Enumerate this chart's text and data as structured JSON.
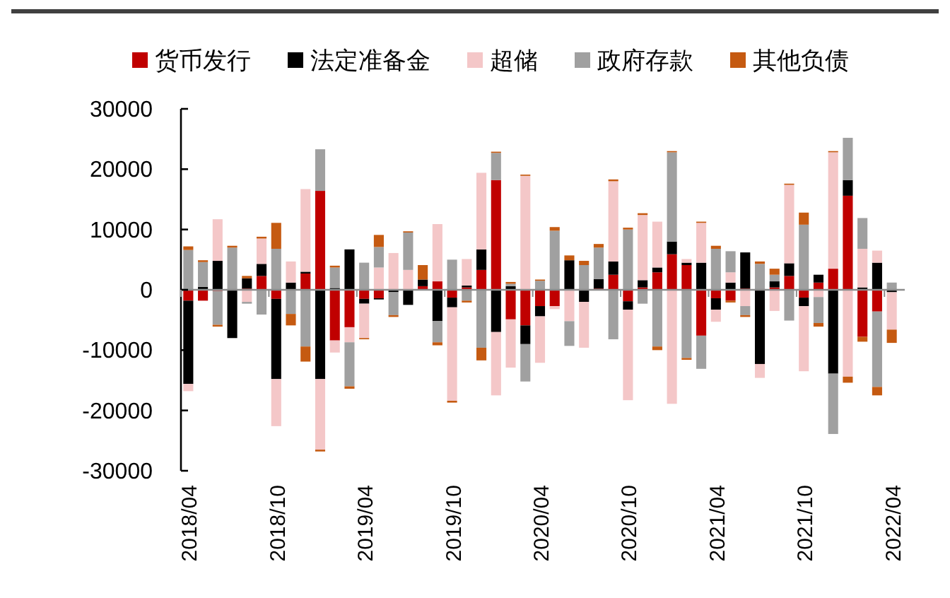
{
  "chart_data": {
    "type": "bar",
    "stacked": true,
    "legend": "top",
    "categories": [
      "2018/04",
      null,
      null,
      null,
      null,
      null,
      "2018/10",
      null,
      null,
      null,
      null,
      null,
      "2019/04",
      null,
      null,
      null,
      null,
      null,
      "2019/10",
      null,
      null,
      null,
      null,
      null,
      "2020/04",
      null,
      null,
      null,
      null,
      null,
      "2020/10",
      null,
      null,
      null,
      null,
      null,
      "2021/04",
      null,
      null,
      null,
      null,
      null,
      "2021/10",
      null,
      null,
      null,
      null,
      null,
      "2022/04"
    ],
    "ylim": [
      -30000,
      30000
    ],
    "yticks": [
      -30000,
      -20000,
      -10000,
      0,
      10000,
      20000,
      30000
    ],
    "series": [
      {
        "name": "货币发行",
        "color": "#c00000",
        "values": [
          -1800,
          -1800,
          -200,
          0,
          200,
          2300,
          -1500,
          0,
          2700,
          16400,
          -8400,
          -6200,
          -1500,
          -1400,
          0,
          0,
          600,
          1400,
          -1300,
          400,
          3300,
          18200,
          -4900,
          -5900,
          -2700,
          -2700,
          0,
          0,
          200,
          2500,
          -1900,
          400,
          2900,
          5900,
          4100,
          -7600,
          -1400,
          -1800,
          200,
          0,
          400,
          2300,
          -1300,
          1200,
          3500,
          15600,
          -7800,
          -3600,
          0
        ]
      },
      {
        "name": "法定准备金",
        "color": "#000000",
        "values": [
          -13800,
          500,
          4800,
          -8000,
          1700,
          2000,
          -13300,
          1200,
          300,
          -14800,
          300,
          6700,
          -800,
          -200,
          -400,
          -2500,
          1100,
          -5200,
          -1600,
          300,
          3400,
          -7000,
          600,
          -3100,
          -1700,
          0,
          4900,
          -2000,
          1600,
          2200,
          -1400,
          1200,
          800,
          2100,
          400,
          4500,
          -1900,
          1200,
          6000,
          -12300,
          1000,
          2100,
          -1400,
          1300,
          -13900,
          2600,
          400,
          4500,
          -400
        ]
      },
      {
        "name": "超储",
        "color": "#f4c7c8",
        "values": [
          -1200,
          null,
          6900,
          0,
          -2000,
          4200,
          -7800,
          3500,
          13700,
          -11700,
          -2000,
          -2500,
          -5700,
          3700,
          6100,
          3300,
          0,
          9500,
          -15500,
          4400,
          12700,
          -10500,
          -8000,
          18900,
          -7700,
          -500,
          -5200,
          -7600,
          null,
          13300,
          -15000,
          10800,
          7600,
          -18900,
          600,
          6600,
          -2000,
          1700,
          -2700,
          -2300,
          -3500,
          13000,
          -10800,
          -1200,
          19300,
          -14400,
          6400,
          2000,
          -6200
        ]
      },
      {
        "name": "政府存款",
        "color": "#a0a0a0",
        "values": [
          6600,
          4100,
          -5600,
          7000,
          -300,
          -4100,
          6800,
          -4000,
          -9400,
          6900,
          3400,
          -7300,
          4500,
          3400,
          -3800,
          6200,
          0,
          -3500,
          5000,
          -1800,
          -9600,
          4500,
          400,
          -6200,
          1500,
          9800,
          -4100,
          4100,
          5200,
          -8200,
          10000,
          -2300,
          -9400,
          14800,
          -11300,
          -5500,
          6800,
          3500,
          -1500,
          4300,
          1100,
          -5100,
          10800,
          -4300,
          -10000,
          7000,
          5100,
          -12500,
          1200
        ]
      },
      {
        "name": "其他负债",
        "color": "#c55a11",
        "values": [
          600,
          300,
          -300,
          300,
          400,
          300,
          4300,
          -1900,
          -2500,
          -300,
          300,
          -400,
          -200,
          2000,
          -300,
          200,
          2400,
          -500,
          -300,
          -300,
          -2100,
          200,
          300,
          200,
          200,
          600,
          800,
          700,
          600,
          300,
          300,
          300,
          -600,
          200,
          -300,
          200,
          500,
          -300,
          -300,
          400,
          1000,
          200,
          2000,
          -600,
          200,
          -1000,
          -800,
          -1400,
          -2200
        ]
      }
    ]
  }
}
